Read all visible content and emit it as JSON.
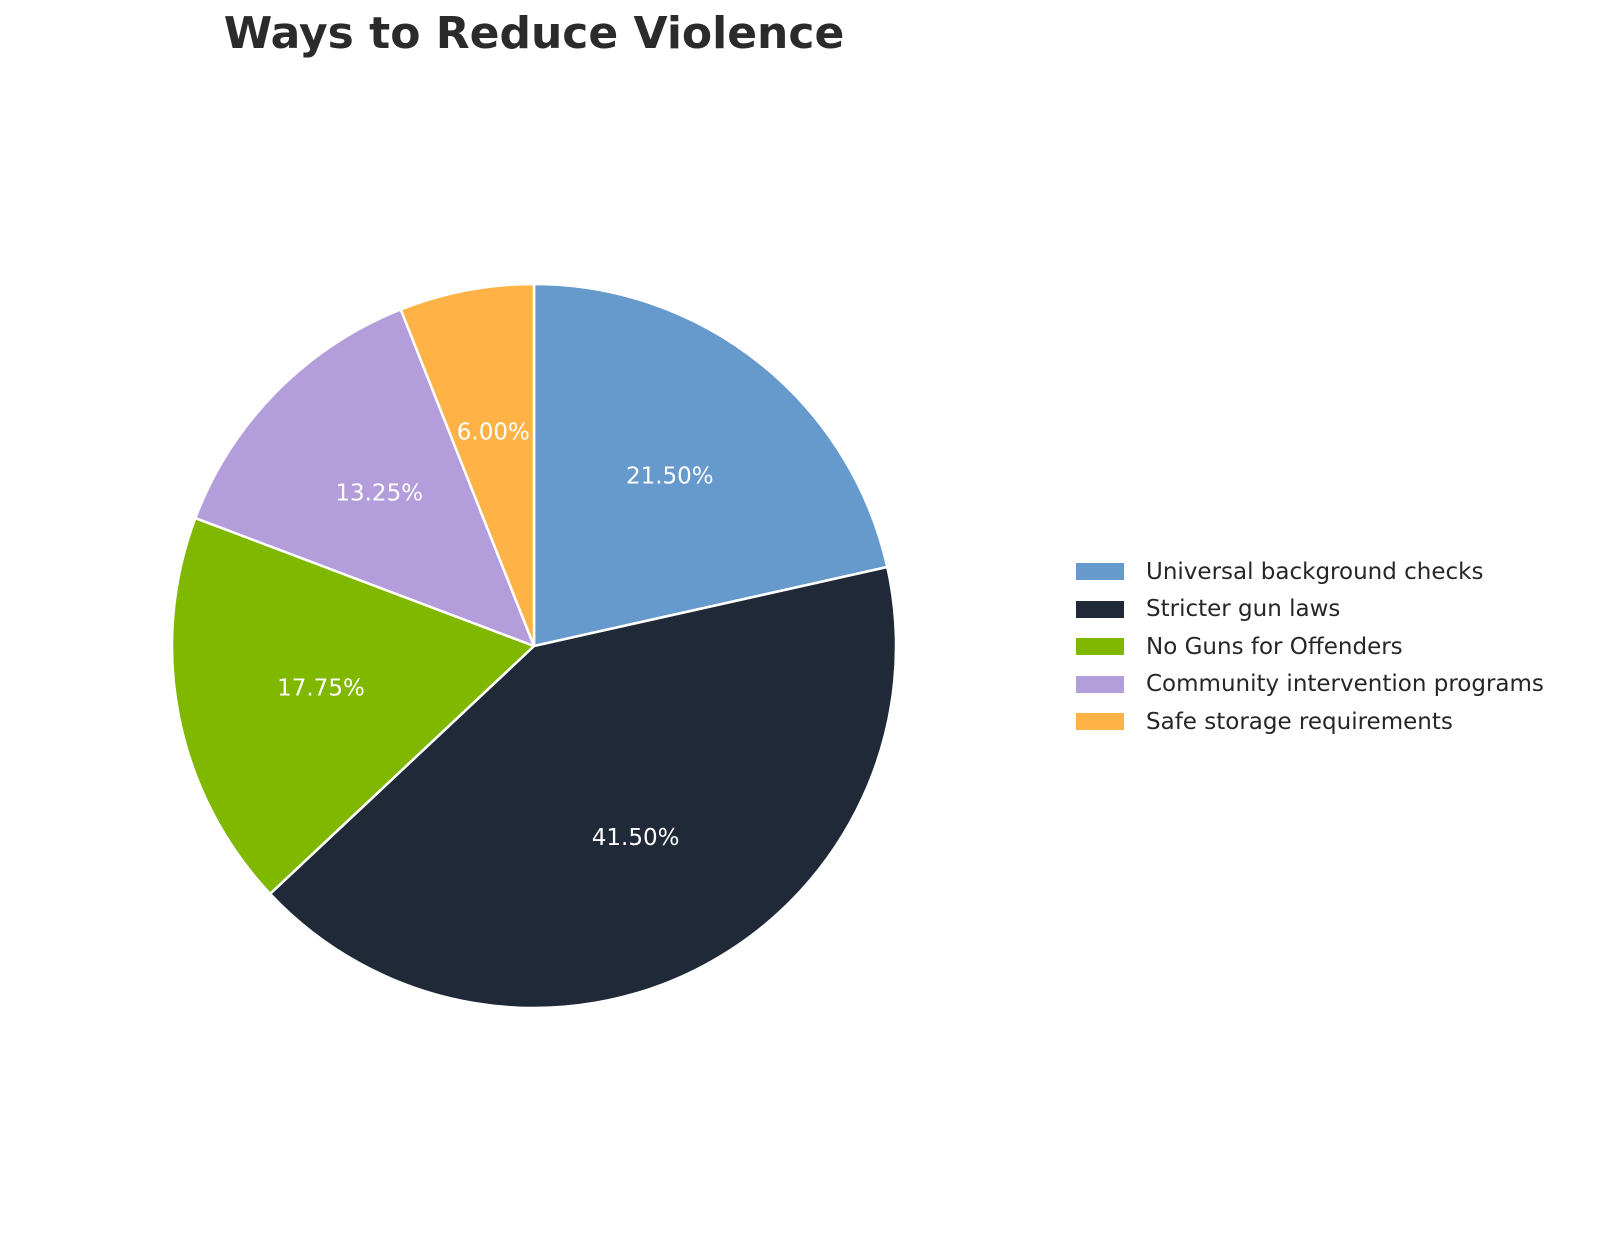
{
  "chart_data": {
    "type": "pie",
    "title": "Ways to Reduce Violence",
    "start_angle_deg": 90,
    "direction": "clockwise",
    "legend_position": "right",
    "slices": [
      {
        "label": "Universal background checks",
        "value": 21.5,
        "display": "21.50%",
        "color": "#6699cc"
      },
      {
        "label": "Stricter gun laws",
        "value": 41.5,
        "display": "41.50%",
        "color": "#202938"
      },
      {
        "label": "No Guns for Offenders",
        "value": 17.75,
        "display": "17.75%",
        "color": "#80b800"
      },
      {
        "label": "Community intervention programs",
        "value": 13.25,
        "display": "13.25%",
        "color": "#b39ddb"
      },
      {
        "label": "Safe storage requirements",
        "value": 6.0,
        "display": "6.00%",
        "color": "#ffb347"
      }
    ]
  }
}
